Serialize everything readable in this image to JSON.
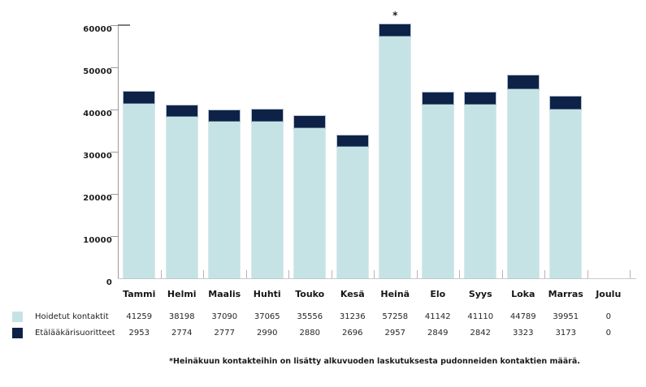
{
  "chart_data": {
    "type": "bar",
    "stacked": true,
    "categories": [
      "Tammi",
      "Helmi",
      "Maalis",
      "Huhti",
      "Touko",
      "Kesä",
      "Heinä",
      "Elo",
      "Syys",
      "Loka",
      "Marras",
      "Joulu"
    ],
    "series": [
      {
        "name": "Hoidetut kontaktit",
        "color": "#c5e3e5",
        "values": [
          41259,
          38198,
          37090,
          37065,
          35556,
          31236,
          57258,
          41142,
          41110,
          44789,
          39951,
          0
        ]
      },
      {
        "name": "Etälääkärisuoritteet",
        "color": "#0e2247",
        "values": [
          2953,
          2774,
          2777,
          2990,
          2880,
          2696,
          2957,
          2849,
          2842,
          3323,
          3173,
          0
        ]
      }
    ],
    "ylim": [
      0,
      62000
    ],
    "yticks": [
      0,
      10000,
      20000,
      30000,
      40000,
      50000,
      60000
    ],
    "ytick_labels": [
      "0",
      "10000",
      "20000",
      "30000",
      "40000",
      "50000",
      "60000"
    ],
    "grid": false,
    "legend_position": "bottom-left",
    "annotation": {
      "category": "Heinä",
      "symbol": "*"
    }
  },
  "footnote": "*Heinäkuun kontakteihin on lisätty alkuvuoden laskutuksesta pudonneiden kontaktien määrä.",
  "colors": {
    "bar_light": "#c5e3e5",
    "bar_dark": "#0e2247",
    "y_axis": "#9a9a9a",
    "x_axis": "#c9c9c9",
    "text": "#1c1c1c"
  }
}
